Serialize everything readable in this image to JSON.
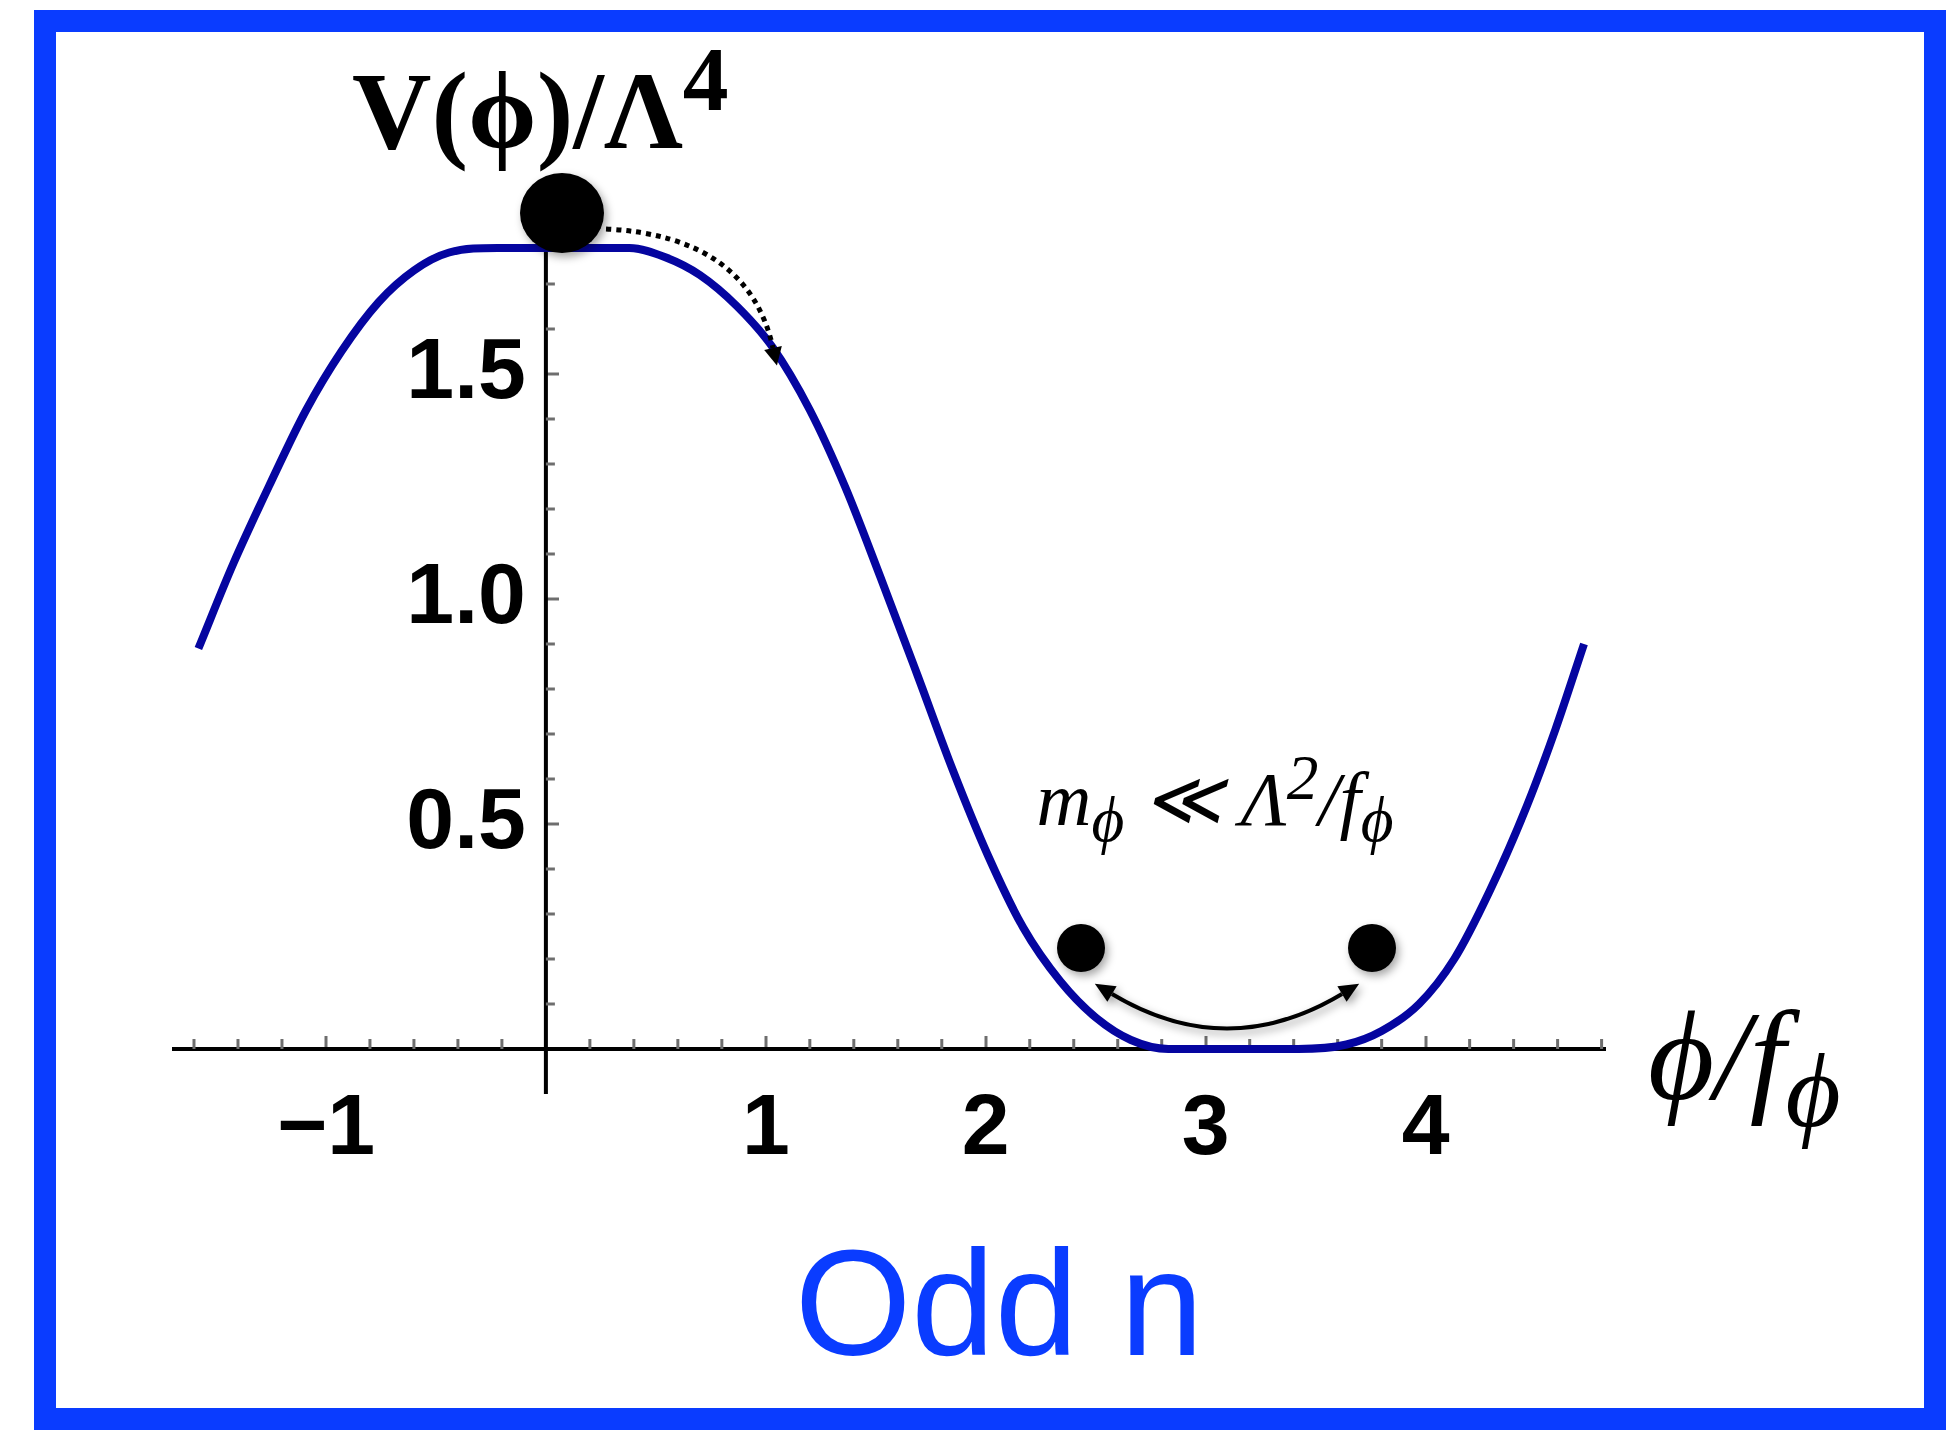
{
  "chart_data": {
    "type": "line",
    "xlabel": "ϕ/f$_{ϕ}$",
    "ylabel": "V(ϕ)/Λ$^{4}$",
    "annotations": [
      "m$_{ϕ}$ ≪ Λ$^{2}$/f$_{ϕ}$",
      "Odd n"
    ],
    "x": [
      -1.58,
      -1.42,
      -1.25,
      -1.09,
      -0.93,
      -0.76,
      -0.6,
      -0.44,
      -0.22,
      0.38,
      0.54,
      0.7,
      0.87,
      1.03,
      1.2,
      1.36,
      1.52,
      1.69,
      1.85,
      2.01,
      2.17,
      2.34,
      2.5,
      2.66,
      2.83,
      3.1,
      3.42,
      3.64,
      3.8,
      3.97,
      4.13,
      4.29,
      4.46,
      4.59,
      4.72
    ],
    "series": [
      {
        "color": "#0505a0",
        "values": [
          0.89,
          1.08,
          1.26,
          1.42,
          1.55,
          1.66,
          1.73,
          1.77,
          1.78,
          1.78,
          1.76,
          1.72,
          1.65,
          1.56,
          1.42,
          1.25,
          1.05,
          0.83,
          0.62,
          0.43,
          0.27,
          0.15,
          0.07,
          0.02,
          0,
          0,
          0,
          0.01,
          0.04,
          0.1,
          0.2,
          0.35,
          0.54,
          0.71,
          0.9
        ]
      }
    ],
    "xlim": [
      -1.7,
      4.82
    ],
    "ylim": [
      -0.1,
      1.8
    ],
    "xticks": [
      {
        "value": -1.6,
        "label": null
      },
      {
        "value": -1.4,
        "label": null
      },
      {
        "value": -1.2,
        "label": null
      },
      {
        "value": -1,
        "label": "−1"
      },
      {
        "value": -0.8,
        "label": null
      },
      {
        "value": -0.6,
        "label": null
      },
      {
        "value": -0.4,
        "label": null
      },
      {
        "value": -0.2,
        "label": null
      },
      {
        "value": 0.2,
        "label": null
      },
      {
        "value": 0.4,
        "label": null
      },
      {
        "value": 0.6,
        "label": null
      },
      {
        "value": 0.8,
        "label": null
      },
      1,
      {
        "value": 1.2,
        "label": null
      },
      {
        "value": 1.4,
        "label": null
      },
      {
        "value": 1.6,
        "label": null
      },
      {
        "value": 1.8,
        "label": null
      },
      2,
      {
        "value": 2.2,
        "label": null
      },
      {
        "value": 2.4,
        "label": null
      },
      {
        "value": 2.6,
        "label": null
      },
      {
        "value": 2.8,
        "label": null
      },
      3,
      {
        "value": 3.2,
        "label": null
      },
      {
        "value": 3.4,
        "label": null
      },
      {
        "value": 3.6,
        "label": null
      },
      {
        "value": 3.8,
        "label": null
      },
      4,
      {
        "value": 4.2,
        "label": null
      },
      {
        "value": 4.4,
        "label": null
      },
      {
        "value": 4.6,
        "label": null
      },
      {
        "value": 4.8,
        "label": null
      }
    ],
    "yticks": [
      {
        "value": 0.1,
        "label": null
      },
      {
        "value": 0.2,
        "label": null
      },
      {
        "value": 0.3,
        "label": null
      },
      {
        "value": 0.4,
        "label": null
      },
      0.5,
      {
        "value": 0.6,
        "label": null
      },
      {
        "value": 0.7,
        "label": null
      },
      {
        "value": 0.8,
        "label": null
      },
      {
        "value": 0.9,
        "label": null
      },
      {
        "value": 1,
        "label": "1.0"
      },
      {
        "value": 1.1,
        "label": null
      },
      {
        "value": 1.2,
        "label": null
      },
      {
        "value": 1.3,
        "label": null
      },
      {
        "value": 1.4,
        "label": null
      },
      1.5,
      {
        "value": 1.6,
        "label": null
      },
      {
        "value": 1.7,
        "label": null
      }
    ],
    "marker": "none",
    "line_style": "solid"
  }
}
